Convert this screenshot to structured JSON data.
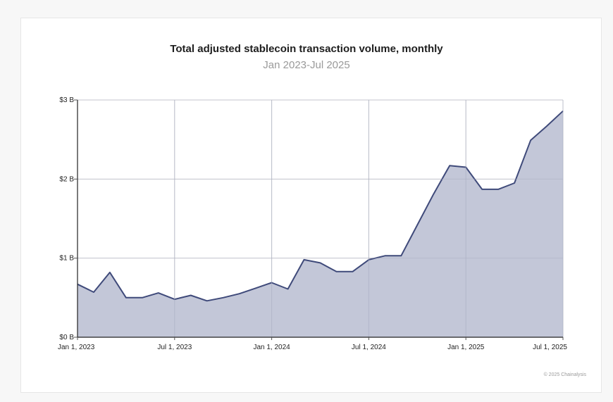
{
  "title": "Total adjusted stablecoin transaction volume, monthly",
  "subtitle": "Jan 2023-Jul 2025",
  "credit": "© 2025 Chainalysis",
  "chart_data": {
    "type": "area",
    "title": "Total adjusted stablecoin transaction volume, monthly",
    "subtitle": "Jan 2023-Jul 2025",
    "xlabel": "",
    "ylabel": "",
    "x": [
      "2023-01",
      "2023-02",
      "2023-03",
      "2023-04",
      "2023-05",
      "2023-06",
      "2023-07",
      "2023-08",
      "2023-09",
      "2023-10",
      "2023-11",
      "2023-12",
      "2024-01",
      "2024-02",
      "2024-03",
      "2024-04",
      "2024-05",
      "2024-06",
      "2024-07",
      "2024-08",
      "2024-09",
      "2024-10",
      "2024-11",
      "2024-12",
      "2025-01",
      "2025-02",
      "2025-03",
      "2025-04",
      "2025-05",
      "2025-06",
      "2025-07"
    ],
    "series": [
      {
        "values": [
          0.67,
          0.57,
          0.82,
          0.5,
          0.5,
          0.56,
          0.48,
          0.53,
          0.46,
          0.5,
          0.55,
          0.62,
          0.69,
          0.61,
          0.98,
          0.94,
          0.83,
          0.83,
          0.98,
          1.03,
          1.03,
          1.42,
          1.81,
          2.17,
          2.15,
          1.87,
          1.87,
          1.95,
          2.49,
          2.67,
          2.86
        ],
        "color": "#3f4a7a",
        "fill": "#c0c4d6"
      }
    ],
    "ylim": [
      0,
      3
    ],
    "yticks": [
      {
        "value": 0,
        "label": "$0 B"
      },
      {
        "value": 1,
        "label": "$1 B"
      },
      {
        "value": 2,
        "label": "$2 B"
      },
      {
        "value": 3,
        "label": "$3 B"
      }
    ],
    "xticks": [
      {
        "value": "2023-01",
        "label": "Jan 1, 2023"
      },
      {
        "value": "2023-07",
        "label": "Jul 1, 2023"
      },
      {
        "value": "2024-01",
        "label": "Jan 1, 2024"
      },
      {
        "value": "2024-07",
        "label": "Jul 1, 2024"
      },
      {
        "value": "2025-01",
        "label": "Jan 1, 2025"
      },
      {
        "value": "2025-07",
        "label": "Jul 1, 2025"
      }
    ],
    "grid": true,
    "legend": "none"
  }
}
